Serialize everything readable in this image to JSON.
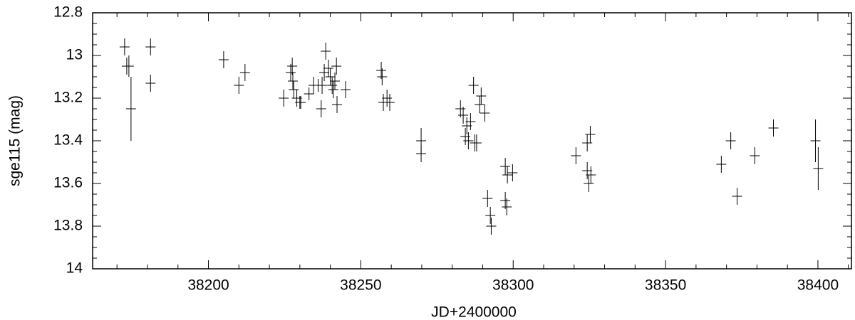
{
  "chart_data": {
    "type": "scatter",
    "x_label": "JD+2400000",
    "y_label": "sge115 (mag)",
    "color": "#000000",
    "xlim": [
      38162,
      38411
    ],
    "xticks": [
      38200,
      38250,
      38300,
      38350,
      38400
    ],
    "xminorticks": [
      38170,
      38180,
      38190,
      38210,
      38220,
      38230,
      38240,
      38260,
      38270,
      38280,
      38290,
      38310,
      38320,
      38330,
      38340,
      38360,
      38370,
      38380,
      38390,
      38410
    ],
    "ylim": [
      14,
      12.8
    ],
    "yticks": [
      12.8,
      13,
      13.2,
      13.4,
      13.6,
      13.8,
      14
    ],
    "yminorticks": [
      12.85,
      12.9,
      12.95,
      13.05,
      13.1,
      13.15,
      13.25,
      13.3,
      13.35,
      13.45,
      13.5,
      13.55,
      13.65,
      13.7,
      13.75,
      13.85,
      13.9,
      13.95
    ],
    "x": [
      38172.5,
      38173.2,
      38173.9,
      38174.6,
      38181,
      38181,
      38205,
      38210,
      38212,
      38224.7,
      38227,
      38227.5,
      38227.7,
      38228,
      38229,
      38230,
      38230.3,
      38233,
      38234.5,
      38236,
      38237,
      38237.3,
      38238,
      38238.5,
      38239.4,
      38240,
      38240.6,
      38241,
      38241.5,
      38242,
      38242.2,
      38245,
      38256.7,
      38257,
      38257.4,
      38258.6,
      38259.5,
      38269.8,
      38269.8,
      38282.7,
      38283.6,
      38284.3,
      38284.8,
      38285.3,
      38286,
      38287,
      38287.4,
      38288,
      38289,
      38289.5,
      38290.7,
      38291.6,
      38292.5,
      38292.8,
      38297.4,
      38298.1,
      38297.4,
      38297.9,
      38299.8,
      38320.6,
      38324.3,
      38324.3,
      38324.8,
      38325.3,
      38325.5,
      38368.3,
      38371.4,
      38373.5,
      38379.3,
      38385.4,
      38399.2,
      38400.1
    ],
    "values": [
      12.96,
      13.05,
      13.05,
      13.25,
      12.96,
      13.13,
      13.02,
      13.14,
      13.08,
      13.2,
      13.08,
      13.05,
      13.12,
      13.16,
      13.2,
      13.22,
      13.22,
      13.18,
      13.14,
      13.14,
      13.25,
      13.14,
      13.08,
      12.98,
      13.06,
      13.1,
      13.14,
      13.16,
      13.12,
      13.05,
      13.23,
      13.16,
      13.07,
      13.1,
      13.22,
      13.2,
      13.22,
      13.4,
      13.46,
      13.25,
      13.28,
      13.38,
      13.33,
      13.4,
      13.31,
      13.14,
      13.41,
      13.41,
      13.23,
      13.19,
      13.27,
      13.67,
      13.75,
      13.8,
      13.52,
      13.56,
      13.68,
      13.71,
      13.55,
      13.47,
      13.41,
      13.54,
      13.6,
      13.37,
      13.56,
      13.51,
      13.4,
      13.66,
      13.47,
      13.34,
      13.4,
      13.53
    ],
    "errors": [
      0.04,
      0.04,
      0.05,
      0.15,
      0.04,
      0.04,
      0.04,
      0.04,
      0.04,
      0.04,
      0.04,
      0.04,
      0.04,
      0.04,
      0.04,
      0.03,
      0.03,
      0.03,
      0.04,
      0.03,
      0.04,
      0.04,
      0.04,
      0.04,
      0.04,
      0.04,
      0.04,
      0.04,
      0.04,
      0.04,
      0.04,
      0.04,
      0.04,
      0.04,
      0.04,
      0.04,
      0.04,
      0.06,
      0.04,
      0.04,
      0.04,
      0.04,
      0.04,
      0.04,
      0.04,
      0.04,
      0.04,
      0.04,
      0.04,
      0.04,
      0.04,
      0.04,
      0.04,
      0.04,
      0.04,
      0.04,
      0.04,
      0.04,
      0.04,
      0.04,
      0.04,
      0.04,
      0.04,
      0.04,
      0.04,
      0.04,
      0.04,
      0.04,
      0.04,
      0.04,
      0.1,
      0.1
    ]
  }
}
